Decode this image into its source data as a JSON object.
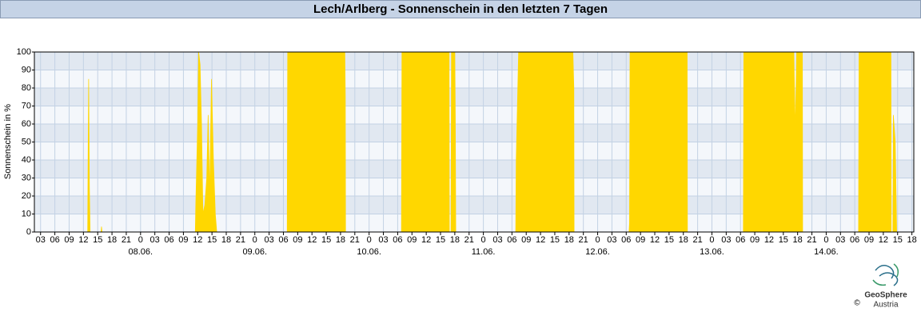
{
  "chart_data": {
    "type": "area",
    "title": "Lech/Arlberg - Sonnenschein in den letzten 7 Tagen",
    "y_label": "Sonnenschein in %",
    "color": "#ffd700",
    "grid": true,
    "ylim": [
      0,
      100
    ],
    "yticks": [
      0,
      10,
      20,
      30,
      40,
      50,
      60,
      70,
      80,
      90,
      100
    ],
    "xlim": [
      1.7,
      186.4
    ],
    "xticks": [
      {
        "value": 3,
        "label": "03"
      },
      {
        "value": 6,
        "label": "06"
      },
      {
        "value": 9,
        "label": "09"
      },
      12,
      15,
      18,
      21,
      {
        "value": 24,
        "label": "0"
      },
      {
        "value": 27,
        "label": "03"
      },
      {
        "value": 30,
        "label": "06"
      },
      {
        "value": 33,
        "label": "09"
      },
      {
        "value": 36,
        "label": "12"
      },
      {
        "value": 39,
        "label": "15"
      },
      {
        "value": 42,
        "label": "18"
      },
      {
        "value": 45,
        "label": "21"
      },
      {
        "value": 48,
        "label": "0"
      },
      {
        "value": 51,
        "label": "03"
      },
      {
        "value": 54,
        "label": "06"
      },
      {
        "value": 57,
        "label": "09"
      },
      {
        "value": 60,
        "label": "12"
      },
      {
        "value": 63,
        "label": "15"
      },
      {
        "value": 66,
        "label": "18"
      },
      {
        "value": 69,
        "label": "21"
      },
      {
        "value": 72,
        "label": "0"
      },
      {
        "value": 75,
        "label": "03"
      },
      {
        "value": 78,
        "label": "06"
      },
      {
        "value": 81,
        "label": "09"
      },
      {
        "value": 84,
        "label": "12"
      },
      {
        "value": 87,
        "label": "15"
      },
      {
        "value": 90,
        "label": "18"
      },
      {
        "value": 93,
        "label": "21"
      },
      {
        "value": 96,
        "label": "0"
      },
      {
        "value": 99,
        "label": "03"
      },
      {
        "value": 102,
        "label": "06"
      },
      {
        "value": 105,
        "label": "09"
      },
      {
        "value": 108,
        "label": "12"
      },
      {
        "value": 111,
        "label": "15"
      },
      {
        "value": 114,
        "label": "18"
      },
      {
        "value": 117,
        "label": "21"
      },
      {
        "value": 120,
        "label": "0"
      },
      {
        "value": 123,
        "label": "03"
      },
      {
        "value": 126,
        "label": "06"
      },
      {
        "value": 129,
        "label": "09"
      },
      {
        "value": 132,
        "label": "12"
      },
      {
        "value": 135,
        "label": "15"
      },
      {
        "value": 138,
        "label": "18"
      },
      {
        "value": 141,
        "label": "21"
      },
      {
        "value": 144,
        "label": "0"
      },
      {
        "value": 147,
        "label": "03"
      },
      {
        "value": 150,
        "label": "06"
      },
      {
        "value": 153,
        "label": "09"
      },
      {
        "value": 156,
        "label": "12"
      },
      {
        "value": 159,
        "label": "15"
      },
      {
        "value": 162,
        "label": "18"
      },
      {
        "value": 165,
        "label": "21"
      },
      {
        "value": 168,
        "label": "0"
      },
      {
        "value": 171,
        "label": "03"
      },
      {
        "value": 174,
        "label": "06"
      },
      {
        "value": 177,
        "label": "09"
      },
      {
        "value": 180,
        "label": "12"
      },
      {
        "value": 183,
        "label": "15"
      },
      {
        "value": 186,
        "label": "18"
      }
    ],
    "date_ticks": [
      {
        "value": 24,
        "label": "08.06."
      },
      {
        "value": 48,
        "label": "09.06."
      },
      {
        "value": 72,
        "label": "10.06."
      },
      {
        "value": 96,
        "label": "11.06."
      },
      {
        "value": 120,
        "label": "12.06."
      },
      {
        "value": 144,
        "label": "13.06."
      },
      {
        "value": 168,
        "label": "14.06."
      }
    ],
    "x": [
      12.9,
      13.0,
      13.1,
      13.25,
      13.4,
      15.7,
      15.8,
      15.9,
      35.5,
      35.6,
      36.0,
      36.2,
      36.5,
      36.8,
      37.1,
      37.5,
      37.9,
      38.2,
      38.5,
      38.9,
      39.3,
      39.7,
      40.0,
      54.8,
      54.9,
      66.9,
      67.0,
      67.05,
      78.8,
      78.9,
      88.8,
      88.85,
      89.2,
      89.3,
      90.0,
      90.1,
      90.2,
      102.8,
      102.9,
      103.4,
      114.8,
      115.0,
      115.05,
      126.6,
      126.7,
      126.8,
      138.8,
      138.85,
      150.6,
      150.7,
      161.2,
      161.5,
      161.8,
      163.0,
      163.05,
      174.8,
      174.9,
      181.6,
      181.65,
      182.0,
      182.1,
      182.5,
      182.8
    ],
    "values": [
      0,
      47,
      85,
      25,
      0,
      0,
      3,
      0,
      0,
      15,
      60,
      100,
      93,
      60,
      10,
      15,
      30,
      65,
      20,
      85,
      40,
      10,
      0,
      0,
      100,
      100,
      75,
      0,
      0,
      100,
      100,
      0,
      0,
      100,
      100,
      65,
      0,
      0,
      40,
      100,
      100,
      80,
      0,
      0,
      5,
      100,
      100,
      0,
      0,
      100,
      100,
      55,
      100,
      100,
      0,
      0,
      100,
      100,
      0,
      0,
      65,
      50,
      0
    ]
  },
  "logo": {
    "name": "GeoSphere",
    "sub": "Austria",
    "copyright": "©"
  }
}
